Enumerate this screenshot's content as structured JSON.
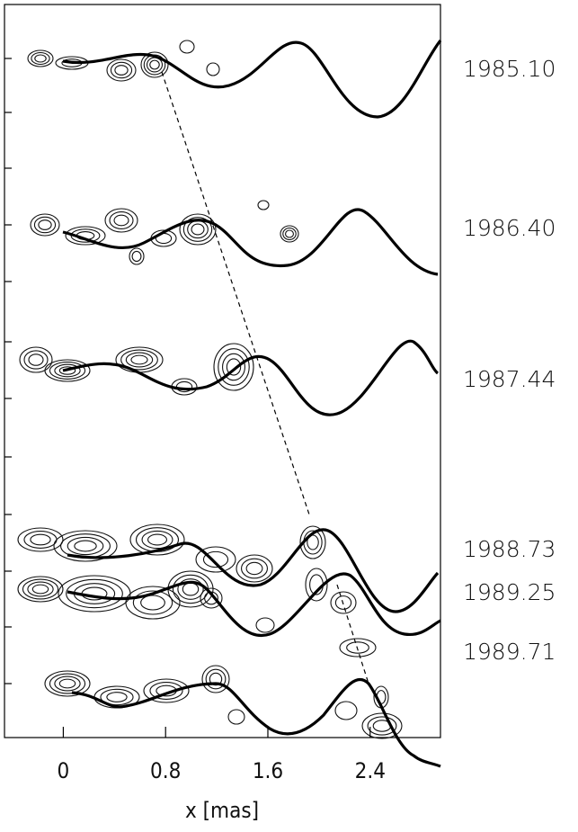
{
  "chart_data": {
    "type": "map",
    "epochs": [
      "1985.10",
      "1986.40",
      "1987.44",
      "1988.73",
      "1989.25",
      "1989.71"
    ],
    "xlabel": "x [mas]",
    "xlim": [
      -0.46,
      2.95
    ],
    "xticks": [
      0,
      0.8,
      1.6,
      2.4
    ]
  }
}
